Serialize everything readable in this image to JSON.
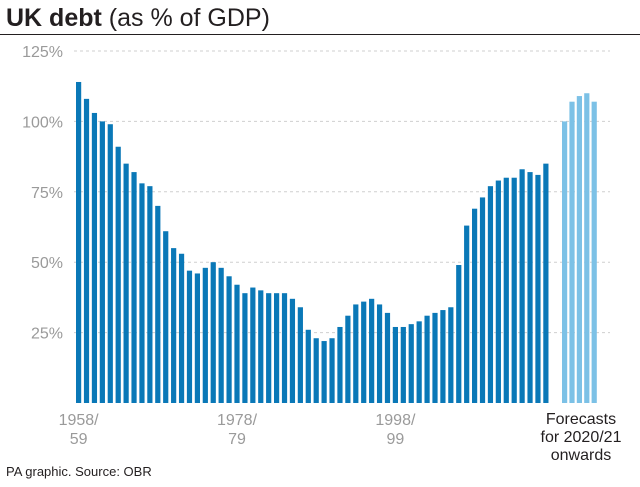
{
  "title": {
    "bold": "UK debt",
    "rest": " (as % of GDP)"
  },
  "source": "PA graphic. Source: OBR",
  "colors": {
    "historic": "#0a78b7",
    "forecast": "#7cc1e6",
    "grid": "#cfcfcf",
    "tick_text": "#9a9a9a"
  },
  "chart_data": {
    "type": "bar",
    "ylim": [
      0,
      125
    ],
    "y_ticks": [
      25,
      50,
      75,
      100,
      125
    ],
    "y_tick_labels": [
      "25%",
      "50%",
      "75%",
      "100%",
      "125%"
    ],
    "x_tick_labels": [
      {
        "line1": "1958/",
        "line2": "59"
      },
      {
        "line1": "1978/",
        "line2": "79"
      },
      {
        "line1": "1998/",
        "line2": "99"
      }
    ],
    "forecast_note": [
      "Forecasts",
      "for 2020/21",
      "onwards"
    ],
    "grid": true,
    "series": [
      {
        "values": [
          114,
          108,
          103,
          100,
          99,
          91,
          85,
          82,
          78,
          77,
          70,
          61,
          55,
          53,
          47,
          46,
          48,
          50,
          48,
          45,
          42,
          39,
          41,
          40,
          39,
          39,
          39,
          37,
          34,
          26,
          23,
          22,
          23,
          27,
          31,
          35,
          36,
          37,
          35,
          32,
          27,
          27,
          28,
          29,
          31,
          32,
          33,
          34,
          49,
          63,
          69,
          73,
          77,
          79,
          80,
          80,
          83,
          82,
          81,
          85
        ]
      },
      {
        "values": [
          100,
          107,
          109,
          110,
          107
        ]
      }
    ]
  }
}
